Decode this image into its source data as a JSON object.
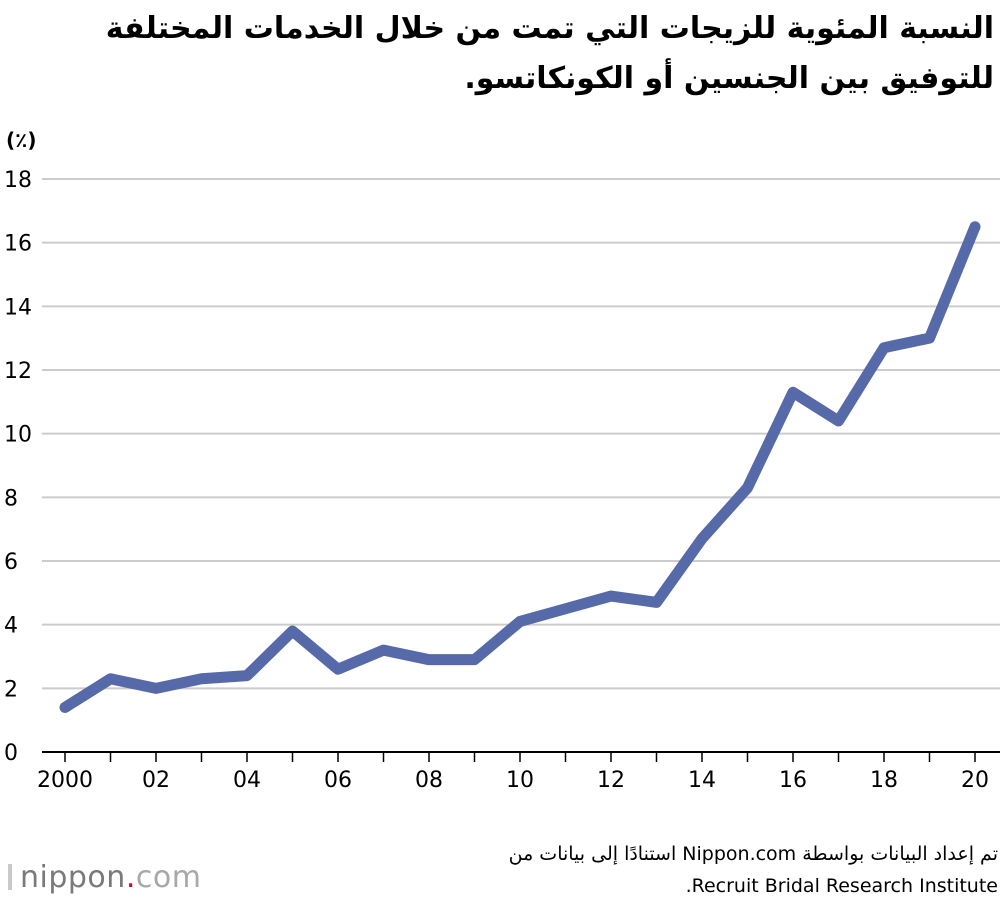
{
  "chart_data": {
    "type": "line",
    "title_line1": "النسبة المئوية للزيجات التي تمت من خلال الخدمات المختلفة",
    "title_line2": "للتوفيق بين الجنسين أو الكونكاتسو.",
    "ylabel": "(٪)",
    "xlabel": "",
    "x": [
      2000,
      2001,
      2002,
      2003,
      2004,
      2005,
      2006,
      2007,
      2008,
      2009,
      2010,
      2011,
      2012,
      2013,
      2014,
      2015,
      2016,
      2017,
      2018,
      2019,
      2020
    ],
    "series": [
      {
        "name": "",
        "values": [
          1.4,
          2.3,
          2.0,
          2.3,
          2.4,
          3.8,
          2.6,
          3.2,
          2.9,
          2.9,
          4.1,
          4.5,
          4.9,
          4.7,
          6.7,
          8.3,
          11.3,
          10.4,
          12.7,
          13.0,
          16.5
        ]
      }
    ],
    "ylim": [
      0,
      18
    ],
    "yticks": [
      "0",
      "2",
      "4",
      "6",
      "8",
      "10",
      "12",
      "14",
      "16",
      "18"
    ],
    "ytick_values": [
      0,
      2,
      4,
      6,
      8,
      10,
      12,
      14,
      16,
      18
    ],
    "xtick_labels": [
      {
        "x": 2000,
        "label": "2000"
      },
      {
        "x": 2002,
        "label": "02"
      },
      {
        "x": 2004,
        "label": "04"
      },
      {
        "x": 2006,
        "label": "06"
      },
      {
        "x": 2008,
        "label": "08"
      },
      {
        "x": 2010,
        "label": "10"
      },
      {
        "x": 2012,
        "label": "12"
      },
      {
        "x": 2014,
        "label": "14"
      },
      {
        "x": 2016,
        "label": "16"
      },
      {
        "x": 2018,
        "label": "18"
      },
      {
        "x": 2020,
        "label": "20"
      }
    ],
    "grid": true,
    "line_color": "#5669a8",
    "grid_color": "#cccccc"
  },
  "source": {
    "line1": "تم إعداد البيانات بواسطة Nippon.com استنادًا إلى بيانات من",
    "line2": "Recruit Bridal Research Institute."
  },
  "logo": {
    "name": "nippon",
    "dot": ".",
    "tld": "com",
    "accent_color": "#e60012"
  }
}
